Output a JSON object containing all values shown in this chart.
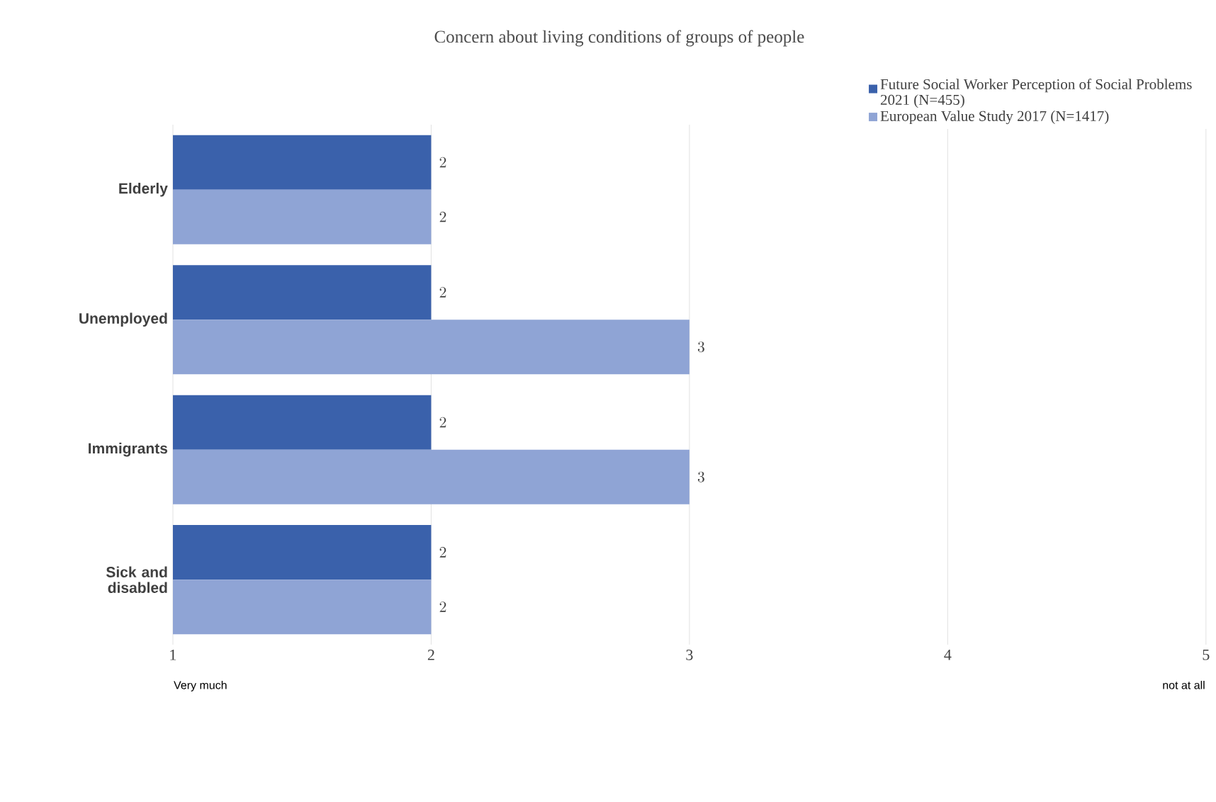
{
  "chart_data": {
    "type": "bar",
    "orientation": "horizontal",
    "title": "Concern about living conditions of groups of people",
    "categories": [
      "Elderly",
      "Unemployed",
      "Immigrants",
      "Sick and disabled"
    ],
    "series": [
      {
        "name": "Future Social Worker Perception of Social Problems 2021 (N=455)",
        "color": "#3a61ab",
        "values": [
          2,
          2,
          2,
          2
        ]
      },
      {
        "name": "European Value Study 2017 (N=1417)",
        "color": "#8fa4d5",
        "values": [
          2,
          3,
          3,
          2
        ]
      }
    ],
    "xlim": [
      1,
      5
    ],
    "xticks": [
      1,
      2,
      3,
      4,
      5
    ],
    "grid": "x",
    "legend": "top right",
    "data_labels": true,
    "annotations": [
      "Very much",
      "not at all"
    ]
  }
}
